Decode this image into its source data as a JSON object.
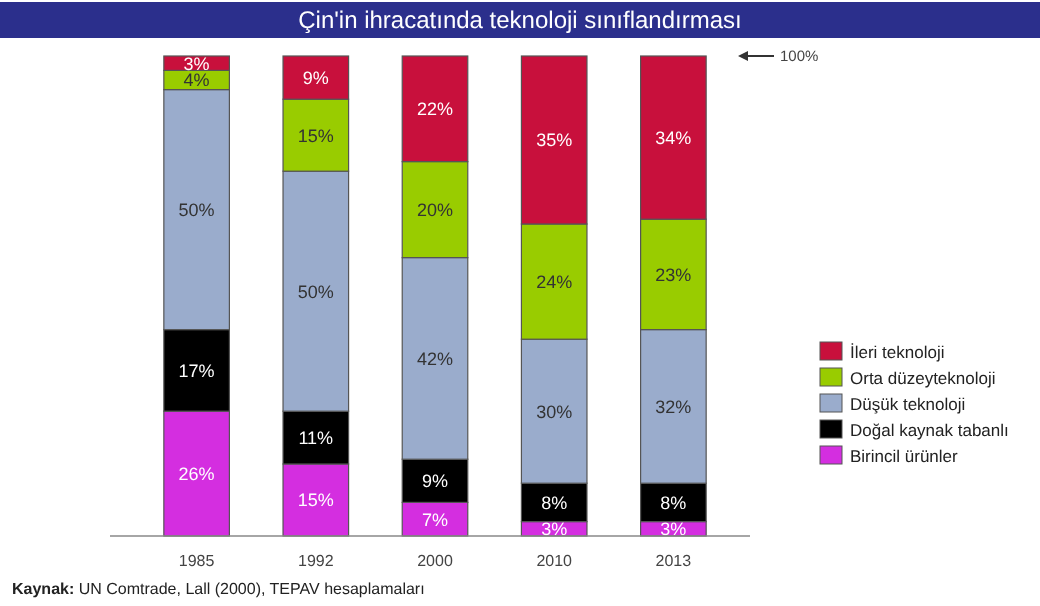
{
  "chart_data": {
    "type": "bar",
    "stacked": true,
    "title": "Çin'in ihracatında teknoloji sınıflandırması",
    "categories": [
      "1985",
      "1992",
      "2000",
      "2010",
      "2013"
    ],
    "ylim": [
      0,
      100
    ],
    "tick_labels": "x",
    "legend": "right",
    "series": [
      {
        "name": "Birincil ürünler",
        "color": "#d42ee0",
        "values": [
          26,
          15,
          7,
          3,
          3
        ],
        "value_labels": [
          "26%",
          "15%",
          "7%",
          "3%",
          "3%"
        ]
      },
      {
        "name": "Doğal kaynak tabanlı",
        "color": "#000000",
        "values": [
          17,
          11,
          9,
          8,
          8
        ],
        "value_labels": [
          "17%",
          "11%",
          "9%",
          "8%",
          "8%"
        ]
      },
      {
        "name": "Düşük teknoloji",
        "color": "#9aaccc",
        "values": [
          50,
          50,
          42,
          30,
          32
        ],
        "value_labels": [
          "50%",
          "50%",
          "42%",
          "30%",
          "32%"
        ]
      },
      {
        "name": "Orta düzeyteknoloji",
        "color": "#99cc00",
        "values": [
          4,
          15,
          20,
          24,
          23
        ],
        "value_labels": [
          "4%",
          "15%",
          "20%",
          "24%",
          "23%"
        ]
      },
      {
        "name": "İleri teknoloji",
        "color": "#c8103c",
        "values": [
          3,
          9,
          22,
          35,
          34
        ],
        "value_labels": [
          "3%",
          "9%",
          "22%",
          "35%",
          "34%"
        ]
      }
    ],
    "annotations": [
      "100%",
      "Kaynak: UN Comtrade, Lall (2000), TEPAV hesaplamaları"
    ]
  }
}
